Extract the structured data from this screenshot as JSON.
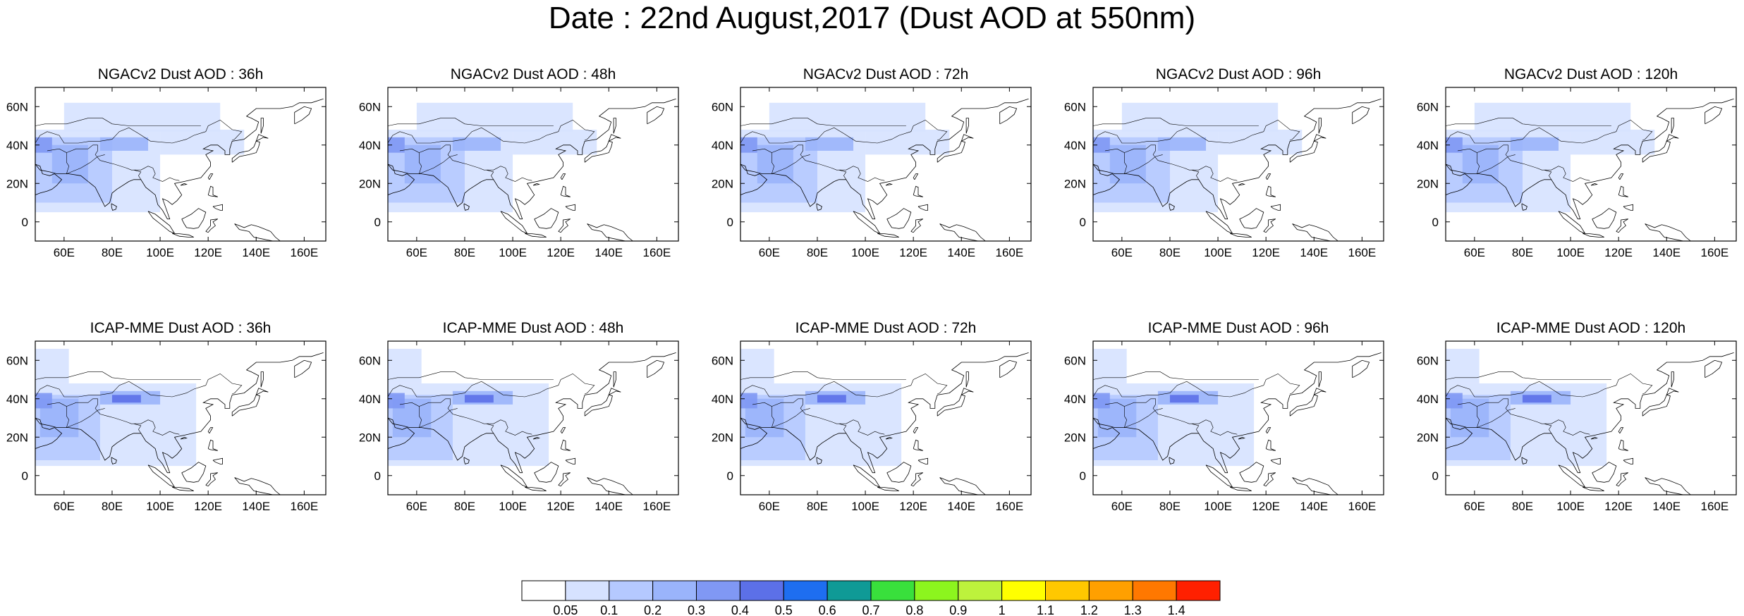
{
  "title": "Date : 22nd August,2017 (Dust AOD at 550nm)",
  "chart_data": {
    "type": "heatmap",
    "title": "Date : 22nd August,2017 (Dust AOD at 550nm)",
    "variable": "Dust AOD at 550nm",
    "lon_range": [
      48,
      169
    ],
    "lat_range": [
      -10,
      70
    ],
    "x_ticks": [
      "60E",
      "80E",
      "100E",
      "120E",
      "140E",
      "160E"
    ],
    "x_tick_values": [
      60,
      80,
      100,
      120,
      140,
      160
    ],
    "y_ticks": [
      "0",
      "20N",
      "40N",
      "60N"
    ],
    "y_tick_values": [
      0,
      20,
      40,
      60
    ],
    "panels": [
      {
        "title": "NGACv2 Dust AOD : 36h",
        "model": "NGACv2",
        "lead": "36h"
      },
      {
        "title": "NGACv2 Dust AOD : 48h",
        "model": "NGACv2",
        "lead": "48h"
      },
      {
        "title": "NGACv2 Dust AOD : 72h",
        "model": "NGACv2",
        "lead": "72h"
      },
      {
        "title": "NGACv2 Dust AOD : 96h",
        "model": "NGACv2",
        "lead": "96h"
      },
      {
        "title": "NGACv2 Dust AOD : 120h",
        "model": "NGACv2",
        "lead": "120h"
      },
      {
        "title": "ICAP-MME Dust AOD : 36h",
        "model": "ICAP-MME",
        "lead": "36h"
      },
      {
        "title": "ICAP-MME Dust AOD : 48h",
        "model": "ICAP-MME",
        "lead": "48h"
      },
      {
        "title": "ICAP-MME Dust AOD : 72h",
        "model": "ICAP-MME",
        "lead": "72h"
      },
      {
        "title": "ICAP-MME Dust AOD : 96h",
        "model": "ICAP-MME",
        "lead": "96h"
      },
      {
        "title": "ICAP-MME Dust AOD : 120h",
        "model": "ICAP-MME",
        "lead": "120h"
      }
    ],
    "colorbar": {
      "labels": [
        "0.05",
        "0.1",
        "0.2",
        "0.3",
        "0.4",
        "0.5",
        "0.6",
        "0.7",
        "0.8",
        "0.9",
        "1",
        "1.1",
        "1.2",
        "1.3",
        "1.4"
      ],
      "colors": [
        "#ffffff",
        "#d6e2ff",
        "#b5c9ff",
        "#9ab4fb",
        "#8098f4",
        "#5c70e8",
        "#1e6ef0",
        "#0f9a96",
        "#39e03c",
        "#8cf51e",
        "#bdf23c",
        "#ffff00",
        "#ffc800",
        "#ffa000",
        "#ff7800",
        "#ff2000"
      ]
    },
    "regions": {
      "NGACv2": [
        {
          "lon": [
            48,
            100
          ],
          "lat": [
            5,
            48
          ],
          "level": 1
        },
        {
          "lon": [
            48,
            80
          ],
          "lat": [
            10,
            44
          ],
          "level": 2
        },
        {
          "lon": [
            55,
            70
          ],
          "lat": [
            20,
            40
          ],
          "level": 3
        },
        {
          "lon": [
            75,
            95
          ],
          "lat": [
            37,
            44
          ],
          "level": 3
        },
        {
          "lon": [
            48,
            55
          ],
          "lat": [
            36,
            44
          ],
          "level": 4
        },
        {
          "lon": [
            100,
            135
          ],
          "lat": [
            35,
            48
          ],
          "level": 1
        },
        {
          "lon": [
            60,
            125
          ],
          "lat": [
            47,
            62
          ],
          "level": 1
        }
      ],
      "ICAP-MME": [
        {
          "lon": [
            48,
            115
          ],
          "lat": [
            5,
            48
          ],
          "level": 1
        },
        {
          "lon": [
            48,
            75
          ],
          "lat": [
            8,
            42
          ],
          "level": 2
        },
        {
          "lon": [
            50,
            66
          ],
          "lat": [
            20,
            40
          ],
          "level": 3
        },
        {
          "lon": [
            75,
            100
          ],
          "lat": [
            37,
            44
          ],
          "level": 3
        },
        {
          "lon": [
            48,
            55
          ],
          "lat": [
            35,
            43
          ],
          "level": 4
        },
        {
          "lon": [
            80,
            92
          ],
          "lat": [
            38,
            42
          ],
          "level": 5
        },
        {
          "lon": [
            48,
            62
          ],
          "lat": [
            48,
            66
          ],
          "level": 1
        }
      ]
    }
  }
}
